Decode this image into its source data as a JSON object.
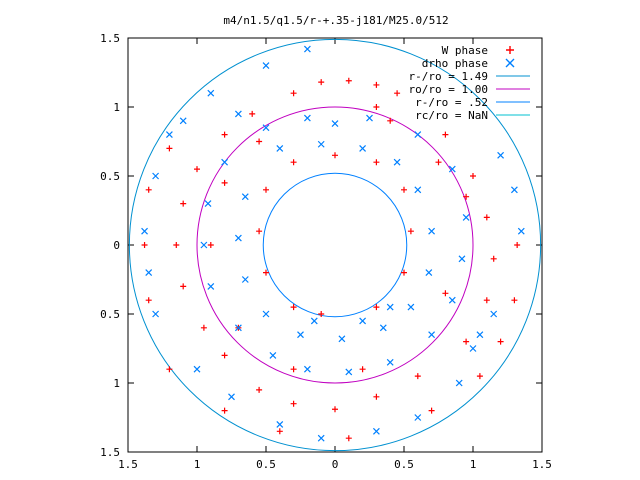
{
  "chart_data": {
    "type": "scatter",
    "title": "m4/n1.5/q1.5/r-+.35-j181/M25.0/512",
    "xlabel": "",
    "ylabel": "",
    "xlim": [
      -1.5,
      1.5
    ],
    "ylim": [
      -1.5,
      1.5
    ],
    "x_ticks": [
      "1.5",
      "1",
      "0.5",
      "0",
      "0.5",
      "1",
      "1.5"
    ],
    "y_ticks": [
      "1.5",
      "1",
      "0.5",
      "0",
      "0.5",
      "1",
      "1.5"
    ],
    "grid": false,
    "legend_position": "top-right",
    "series": [
      {
        "name": "W phase",
        "marker": "+",
        "color": "#ff0000",
        "points": [
          [
            -0.3,
            1.1
          ],
          [
            -0.1,
            1.18
          ],
          [
            0.1,
            1.19
          ],
          [
            0.3,
            1.16
          ],
          [
            0.45,
            1.1
          ],
          [
            0.3,
            1.0
          ],
          [
            0.8,
            0.8
          ],
          [
            1.0,
            0.5
          ],
          [
            1.1,
            0.2
          ],
          [
            1.15,
            -0.1
          ],
          [
            1.1,
            -0.4
          ],
          [
            0.95,
            -0.7
          ],
          [
            0.6,
            -0.95
          ],
          [
            0.3,
            -1.1
          ],
          [
            0.0,
            -1.19
          ],
          [
            -0.3,
            -1.15
          ],
          [
            -0.55,
            -1.05
          ],
          [
            -0.8,
            -0.8
          ],
          [
            -0.95,
            -0.6
          ],
          [
            -1.1,
            -0.3
          ],
          [
            -1.15,
            0.0
          ],
          [
            -1.1,
            0.3
          ],
          [
            -1.0,
            0.55
          ],
          [
            -0.8,
            0.8
          ],
          [
            -0.6,
            0.95
          ],
          [
            -0.1,
            -0.5
          ],
          [
            0.3,
            -0.45
          ],
          [
            0.5,
            -0.2
          ],
          [
            0.55,
            0.1
          ],
          [
            0.5,
            0.4
          ],
          [
            0.3,
            0.6
          ],
          [
            0.0,
            0.65
          ],
          [
            -0.3,
            0.6
          ],
          [
            -0.5,
            0.4
          ],
          [
            -0.55,
            0.1
          ],
          [
            -0.5,
            -0.2
          ],
          [
            -0.3,
            -0.45
          ],
          [
            1.32,
            0.0
          ],
          [
            1.3,
            -0.4
          ],
          [
            1.2,
            -0.7
          ],
          [
            1.05,
            -0.95
          ],
          [
            0.7,
            -1.2
          ],
          [
            0.1,
            -1.4
          ],
          [
            -0.4,
            -1.35
          ],
          [
            -0.8,
            -1.2
          ],
          [
            -1.2,
            -0.9
          ],
          [
            -1.35,
            -0.4
          ],
          [
            -1.38,
            0.0
          ],
          [
            -1.35,
            0.4
          ],
          [
            -1.2,
            0.7
          ],
          [
            0.95,
            0.35
          ],
          [
            0.8,
            -0.35
          ],
          [
            0.2,
            -0.9
          ],
          [
            -0.3,
            -0.9
          ],
          [
            -0.7,
            -0.6
          ],
          [
            -0.9,
            0.0
          ],
          [
            -0.8,
            0.45
          ],
          [
            -0.55,
            0.75
          ],
          [
            0.4,
            0.9
          ],
          [
            0.75,
            0.6
          ]
        ]
      },
      {
        "name": "drho phase",
        "marker": "x",
        "color": "#0080ff",
        "points": [
          [
            -0.7,
            0.95
          ],
          [
            -0.5,
            0.85
          ],
          [
            -0.2,
            0.92
          ],
          [
            0.0,
            0.88
          ],
          [
            0.25,
            0.92
          ],
          [
            0.6,
            0.8
          ],
          [
            0.85,
            0.55
          ],
          [
            0.95,
            0.2
          ],
          [
            0.92,
            -0.1
          ],
          [
            0.85,
            -0.4
          ],
          [
            0.7,
            -0.65
          ],
          [
            0.4,
            -0.85
          ],
          [
            0.1,
            -0.92
          ],
          [
            -0.2,
            -0.9
          ],
          [
            -0.45,
            -0.8
          ],
          [
            -0.7,
            -0.6
          ],
          [
            -0.9,
            -0.3
          ],
          [
            -0.95,
            0.0
          ],
          [
            -0.92,
            0.3
          ],
          [
            -0.8,
            0.6
          ],
          [
            -0.4,
            0.7
          ],
          [
            -0.1,
            0.73
          ],
          [
            0.2,
            0.7
          ],
          [
            0.45,
            0.6
          ],
          [
            0.6,
            0.4
          ],
          [
            0.7,
            0.1
          ],
          [
            0.68,
            -0.2
          ],
          [
            0.55,
            -0.45
          ],
          [
            0.35,
            -0.6
          ],
          [
            0.05,
            -0.68
          ],
          [
            -0.25,
            -0.65
          ],
          [
            -0.5,
            -0.5
          ],
          [
            -0.65,
            -0.25
          ],
          [
            -0.7,
            0.05
          ],
          [
            -0.65,
            0.35
          ],
          [
            -1.2,
            0.8
          ],
          [
            -1.1,
            0.9
          ],
          [
            -0.9,
            1.1
          ],
          [
            -0.5,
            1.3
          ],
          [
            -0.2,
            1.42
          ],
          [
            1.0,
            -0.75
          ],
          [
            1.05,
            -0.65
          ],
          [
            1.15,
            -0.5
          ],
          [
            0.9,
            -1.0
          ],
          [
            0.6,
            -1.25
          ],
          [
            0.3,
            -1.35
          ],
          [
            -0.1,
            -1.4
          ],
          [
            -0.4,
            -1.3
          ],
          [
            -0.75,
            -1.1
          ],
          [
            -1.0,
            -0.9
          ],
          [
            -1.3,
            -0.5
          ],
          [
            -1.35,
            -0.2
          ],
          [
            -1.38,
            0.1
          ],
          [
            -1.3,
            0.5
          ],
          [
            1.3,
            0.4
          ],
          [
            1.35,
            0.1
          ],
          [
            1.2,
            0.65
          ],
          [
            0.4,
            -0.45
          ],
          [
            0.2,
            -0.55
          ],
          [
            -0.15,
            -0.55
          ]
        ]
      }
    ],
    "rings": [
      {
        "name": "r-/ro = 1.49",
        "radius": 1.49,
        "color": "#0090d0"
      },
      {
        "name": "ro/ro = 1.00",
        "radius": 1.0,
        "color": "#c000c0"
      },
      {
        "name": "r-/ro = .52",
        "radius": 0.52,
        "color": "#0080ff"
      },
      {
        "name": "rc/ro = NaN",
        "radius": null,
        "color": "#00c0d0"
      }
    ]
  }
}
